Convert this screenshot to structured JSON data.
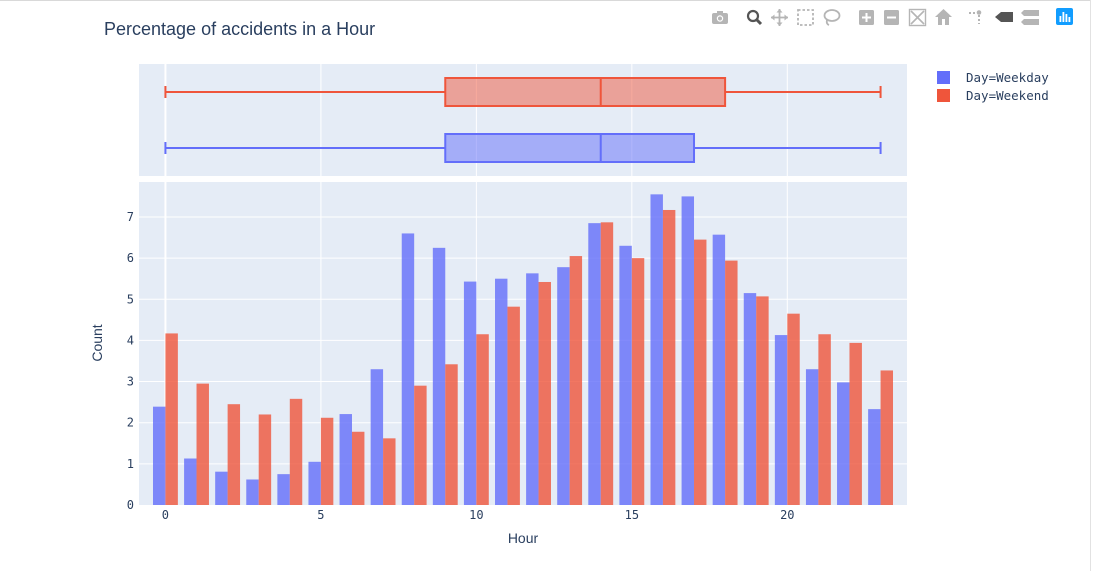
{
  "modebar": {
    "buttons": [
      {
        "name": "camera-icon",
        "active": false
      },
      {
        "name": "zoom-icon",
        "active": true
      },
      {
        "name": "pan-icon",
        "active": false
      },
      {
        "name": "box-select-icon",
        "active": false
      },
      {
        "name": "lasso-select-icon",
        "active": false
      },
      {
        "name": "zoom-in-icon",
        "active": false
      },
      {
        "name": "zoom-out-icon",
        "active": false
      },
      {
        "name": "autoscale-icon",
        "active": false
      },
      {
        "name": "reset-axes-icon",
        "active": false
      },
      {
        "name": "spike-lines-icon",
        "active": false
      },
      {
        "name": "hover-closest-icon",
        "active": false
      },
      {
        "name": "hover-compare-icon",
        "active": false
      },
      {
        "name": "plotly-logo-icon",
        "active": false
      }
    ]
  },
  "chart_data": {
    "type": "bar",
    "title": "Percentage of accidents in a Hour",
    "xlabel": "Hour",
    "ylabel": "Count",
    "xlim": [
      -0.85,
      23.85
    ],
    "ylim": [
      0,
      7.85
    ],
    "xticks": [
      0,
      5,
      10,
      15,
      20
    ],
    "yticks": [
      0,
      1,
      2,
      3,
      4,
      5,
      6,
      7
    ],
    "grid": true,
    "legend_position": "top-right",
    "categories": [
      0,
      1,
      2,
      3,
      4,
      5,
      6,
      7,
      8,
      9,
      10,
      11,
      12,
      13,
      14,
      15,
      16,
      17,
      18,
      19,
      20,
      21,
      22,
      23
    ],
    "series": [
      {
        "name": "Day=Weekday",
        "color": "#636efa",
        "values": [
          2.39,
          1.13,
          0.81,
          0.62,
          0.75,
          1.05,
          2.21,
          3.3,
          6.6,
          6.25,
          5.43,
          5.5,
          5.63,
          5.78,
          6.85,
          6.3,
          7.55,
          7.5,
          6.57,
          5.15,
          4.13,
          3.3,
          2.98,
          2.33
        ],
        "box": {
          "min": 0,
          "q1": 9,
          "median": 14,
          "q3": 17,
          "max": 23
        }
      },
      {
        "name": "Day=Weekend",
        "color": "#ef553b",
        "values": [
          4.17,
          2.95,
          2.45,
          2.2,
          2.58,
          2.12,
          1.78,
          1.62,
          2.9,
          3.42,
          4.15,
          4.82,
          5.42,
          6.05,
          6.87,
          6.0,
          7.17,
          6.45,
          5.94,
          5.07,
          4.65,
          4.15,
          3.94,
          3.27
        ],
        "box": {
          "min": 0,
          "q1": 9,
          "median": 14,
          "q3": 18,
          "max": 23
        }
      }
    ]
  }
}
